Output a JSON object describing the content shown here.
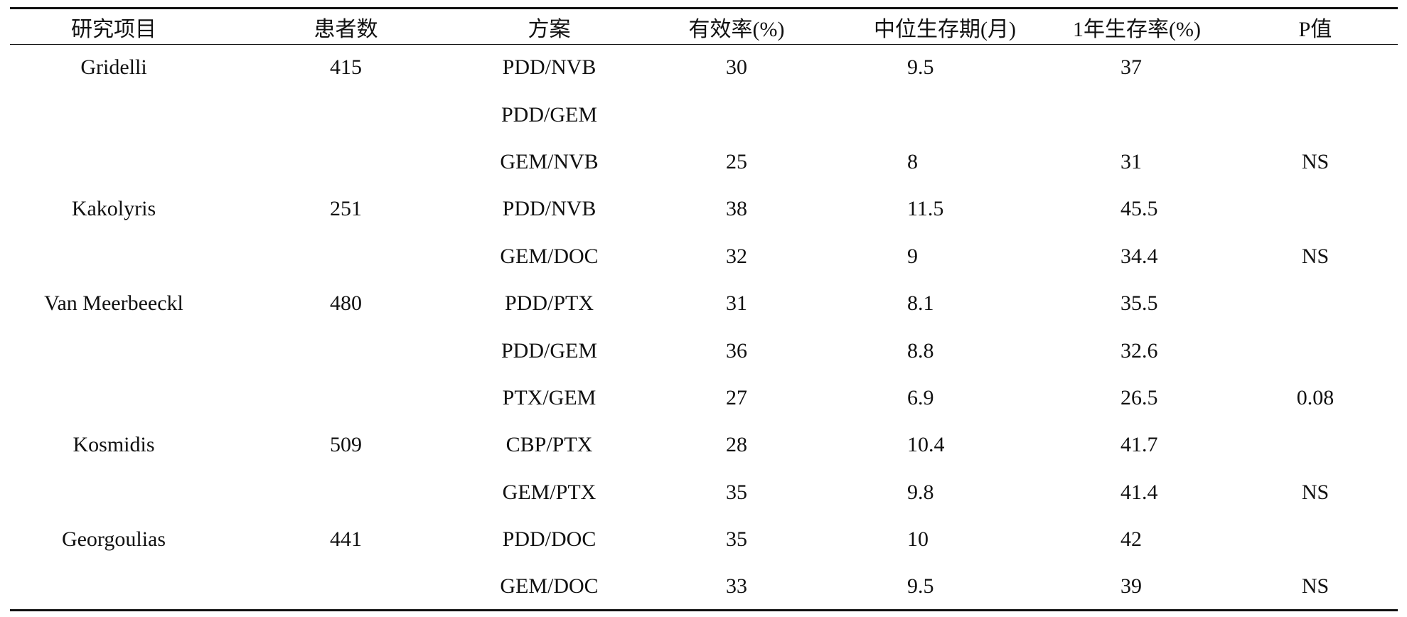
{
  "table": {
    "headers": [
      "研究项目",
      "患者数",
      "方案",
      "有效率(%)",
      "中位生存期(月)",
      "1年生存率(%)",
      "P值"
    ],
    "rows": [
      {
        "study": "Gridelli",
        "patients": "415",
        "regimen": "PDD/NVB",
        "response": "30",
        "median_survival": "9.5",
        "one_year_survival": "37",
        "p_value": ""
      },
      {
        "study": "",
        "patients": "",
        "regimen": "PDD/GEM",
        "response": "",
        "median_survival": "",
        "one_year_survival": "",
        "p_value": ""
      },
      {
        "study": "",
        "patients": "",
        "regimen": "GEM/NVB",
        "response": "25",
        "median_survival": "8",
        "one_year_survival": "31",
        "p_value": "NS"
      },
      {
        "study": "Kakolyris",
        "patients": "251",
        "regimen": "PDD/NVB",
        "response": "38",
        "median_survival": "11.5",
        "one_year_survival": "45.5",
        "p_value": ""
      },
      {
        "study": "",
        "patients": "",
        "regimen": "GEM/DOC",
        "response": "32",
        "median_survival": "9",
        "one_year_survival": "34.4",
        "p_value": "NS"
      },
      {
        "study": "Van Meerbeeckl",
        "patients": "480",
        "regimen": "PDD/PTX",
        "response": "31",
        "median_survival": "8.1",
        "one_year_survival": "35.5",
        "p_value": ""
      },
      {
        "study": "",
        "patients": "",
        "regimen": "PDD/GEM",
        "response": "36",
        "median_survival": "8.8",
        "one_year_survival": "32.6",
        "p_value": ""
      },
      {
        "study": "",
        "patients": "",
        "regimen": "PTX/GEM",
        "response": "27",
        "median_survival": "6.9",
        "one_year_survival": "26.5",
        "p_value": "0.08"
      },
      {
        "study": "Kosmidis",
        "patients": "509",
        "regimen": "CBP/PTX",
        "response": "28",
        "median_survival": "10.4",
        "one_year_survival": "41.7",
        "p_value": ""
      },
      {
        "study": "",
        "patients": "",
        "regimen": "GEM/PTX",
        "response": "35",
        "median_survival": "9.8",
        "one_year_survival": "41.4",
        "p_value": "NS"
      },
      {
        "study": "Georgoulias",
        "patients": "441",
        "regimen": "PDD/DOC",
        "response": "35",
        "median_survival": "10",
        "one_year_survival": "42",
        "p_value": ""
      },
      {
        "study": "",
        "patients": "",
        "regimen": "GEM/DOC",
        "response": "33",
        "median_survival": "9.5",
        "one_year_survival": "39",
        "p_value": "NS"
      }
    ]
  }
}
